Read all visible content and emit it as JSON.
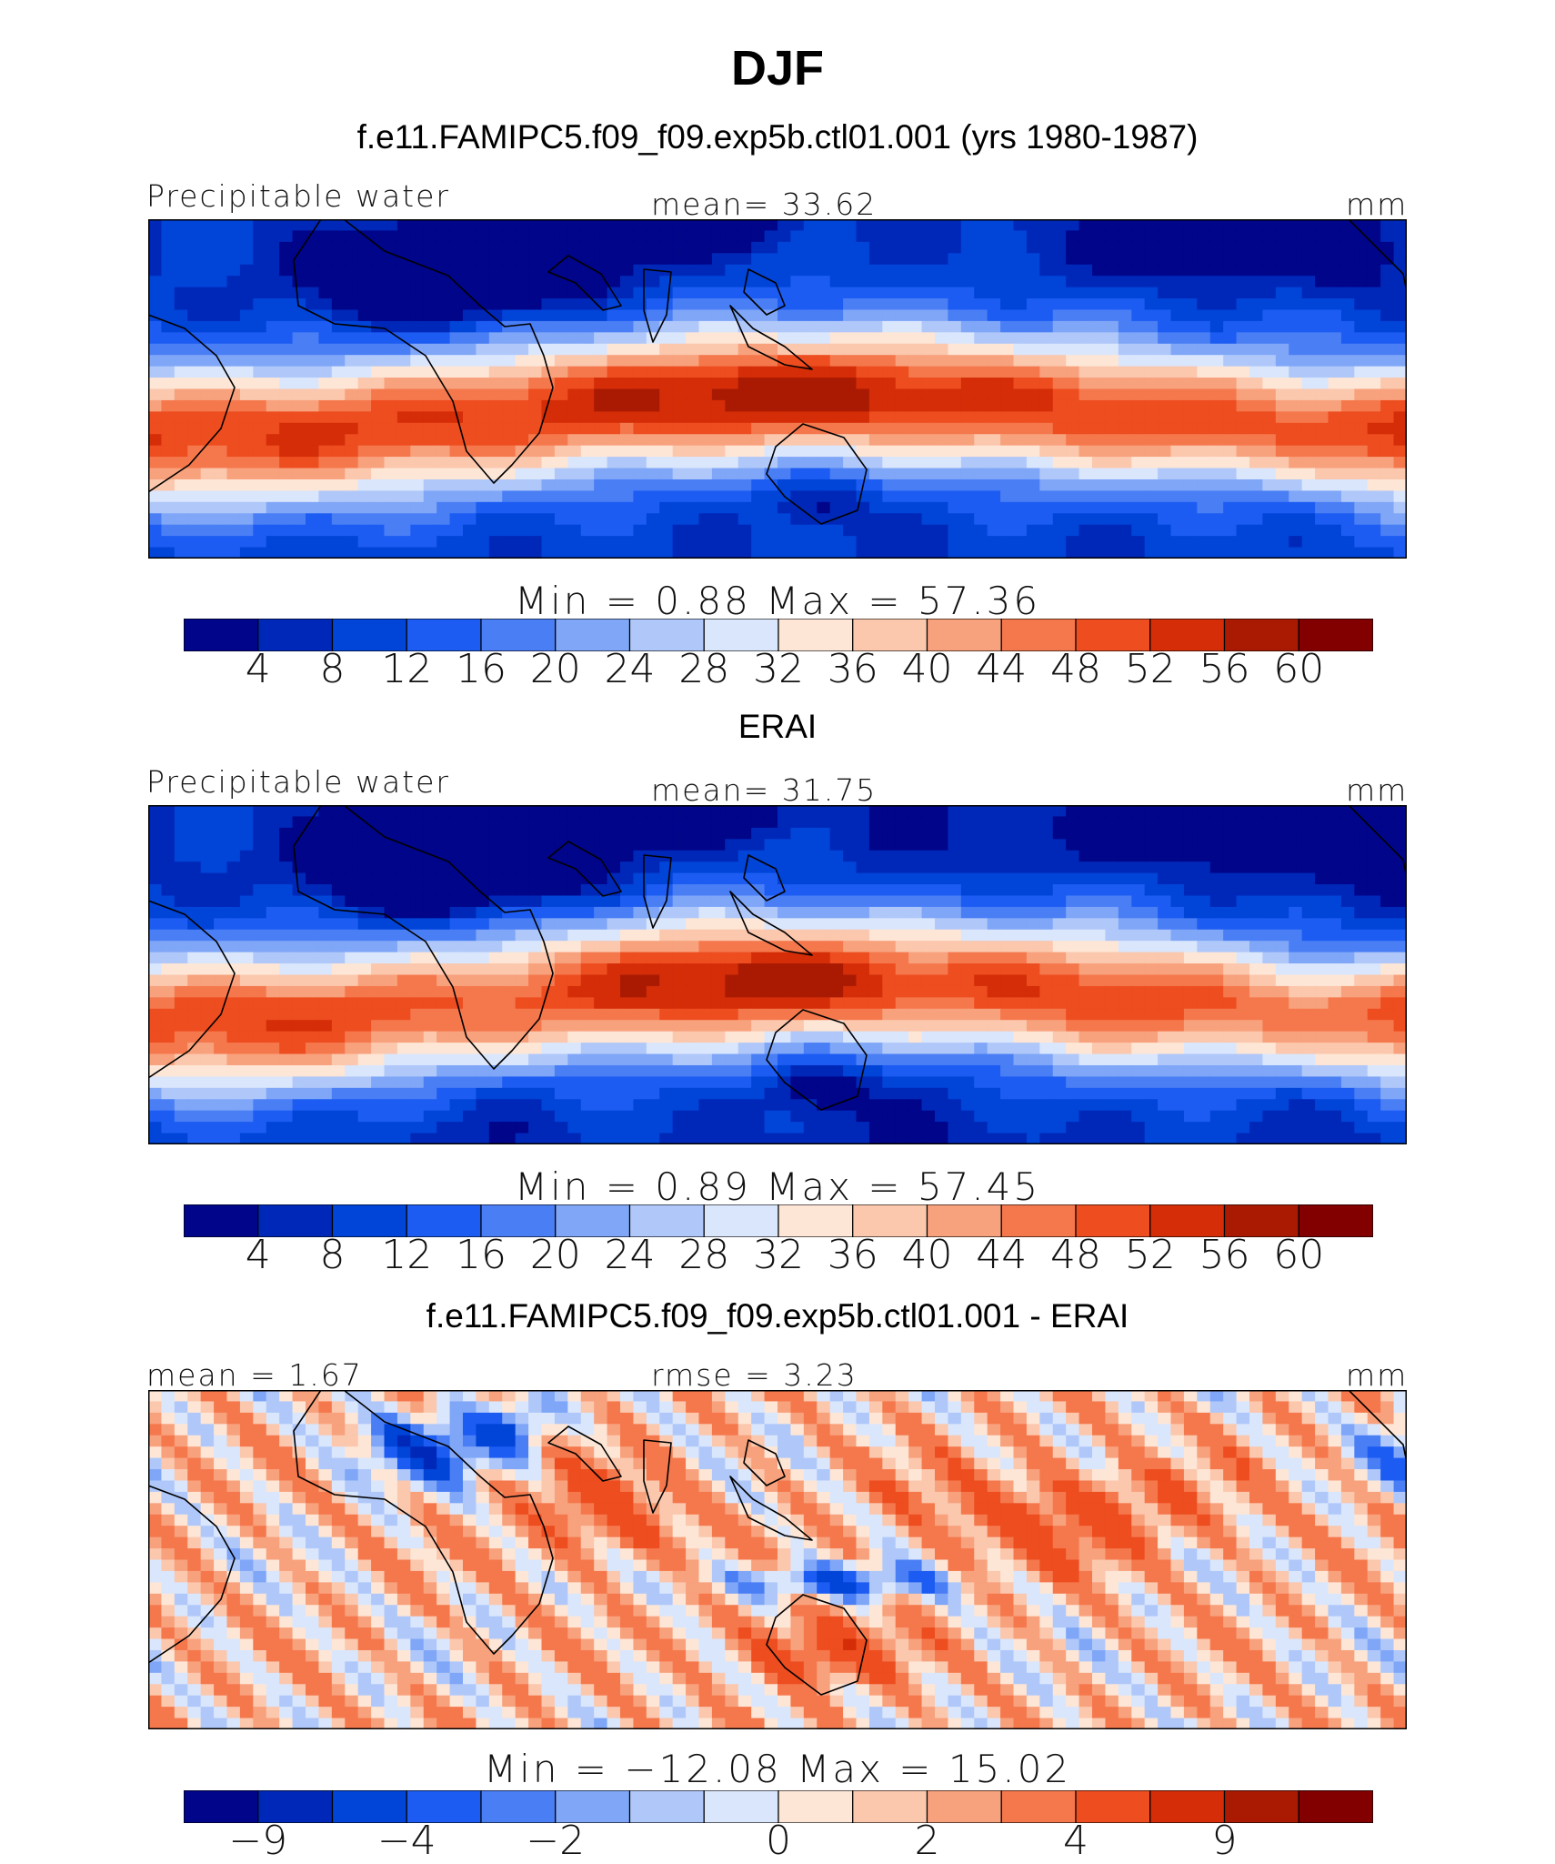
{
  "header": {
    "title": "DJF",
    "subtitle": "f.e11.FAMIPC5.f09_f09.exp5b.ctl01.001 (yrs 1980-1987)"
  },
  "colors": {
    "abs_levels": [
      "#00058a",
      "#0028b8",
      "#0044d8",
      "#1c5cf2",
      "#4a7ef5",
      "#7fa6f7",
      "#b0c8f9",
      "#dae6fc",
      "#fde6d6",
      "#fbc7ad",
      "#f8a17d",
      "#f5784d",
      "#ed4d1f",
      "#d42d08",
      "#aa1a02",
      "#820000"
    ],
    "diff_levels": [
      "#00058a",
      "#0028b8",
      "#0044d8",
      "#1c5cf2",
      "#4a7ef5",
      "#7fa6f7",
      "#b0c8f9",
      "#dae6fc",
      "#fde6d6",
      "#fbc7ad",
      "#f8a17d",
      "#f5784d",
      "#ed4d1f",
      "#d42d08",
      "#aa1a02",
      "#820000"
    ],
    "coast": "#000000"
  },
  "chart_data": [
    {
      "type": "heatmap",
      "title": "f.e11.FAMIPC5.f09_f09.exp5b.ctl01.001 (yrs 1980-1987)",
      "left_label": "Precipitable water",
      "center_label": "mean=  33.62",
      "right_label": "mm",
      "variable": "Precipitable water",
      "units": "mm",
      "mean": 33.62,
      "min": 0.88,
      "max": 57.36,
      "stats_text": "Min  =    0.88  Max  =   57.36",
      "colorbar_ticks": [
        "4",
        "8",
        "12",
        "16",
        "20",
        "24",
        "28",
        "32",
        "36",
        "40",
        "44",
        "48",
        "52",
        "56",
        "60"
      ],
      "lon_range": [
        0,
        360
      ],
      "lat_range": [
        -38,
        38
      ],
      "field": "model"
    },
    {
      "type": "heatmap",
      "title": "ERAI",
      "left_label": "Precipitable water",
      "center_label": "mean=  31.75",
      "right_label": "mm",
      "variable": "Precipitable water",
      "units": "mm",
      "mean": 31.75,
      "min": 0.89,
      "max": 57.45,
      "stats_text": "Min  =    0.89  Max  =   57.45",
      "colorbar_ticks": [
        "4",
        "8",
        "12",
        "16",
        "20",
        "24",
        "28",
        "32",
        "36",
        "40",
        "44",
        "48",
        "52",
        "56",
        "60"
      ],
      "lon_range": [
        0,
        360
      ],
      "lat_range": [
        -38,
        38
      ],
      "field": "obs"
    },
    {
      "type": "heatmap",
      "title": "f.e11.FAMIPC5.f09_f09.exp5b.ctl01.001 - ERAI",
      "left_label": "mean =    1.67",
      "center_label": "rmse =    3.23",
      "right_label": "mm",
      "units": "mm",
      "mean": 1.67,
      "rmse": 3.23,
      "min": -12.08,
      "max": 15.02,
      "stats_text": "Min  = −12.08  Max  =   15.02",
      "colorbar_ticks": [
        "−9",
        "−4",
        "−2",
        "0",
        "2",
        "4",
        "9"
      ],
      "lon_range": [
        0,
        360
      ],
      "lat_range": [
        -38,
        38
      ],
      "field": "diff"
    }
  ]
}
